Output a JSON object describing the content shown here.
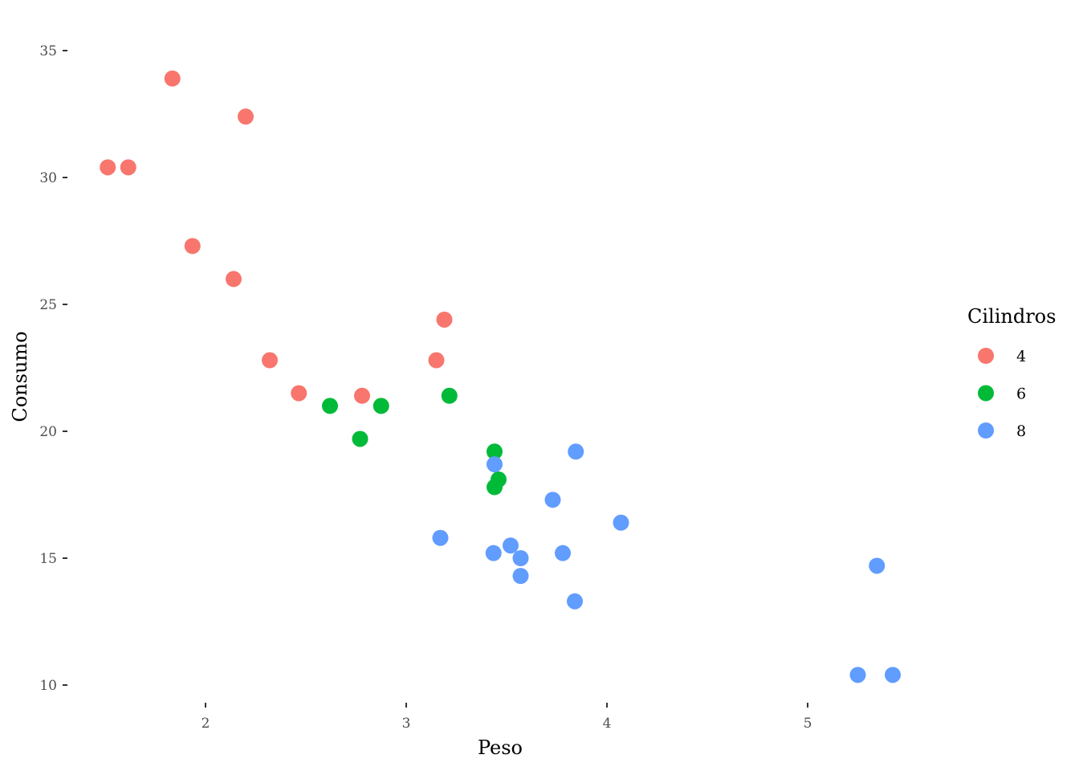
{
  "chart_data": {
    "type": "scatter",
    "xlabel": "Peso",
    "ylabel": "Consumo",
    "xlim": [
      1.5,
      5.5
    ],
    "ylim": [
      10,
      35
    ],
    "x_ticks": [
      2,
      3,
      4,
      5
    ],
    "y_ticks": [
      10,
      15,
      20,
      25,
      30,
      35
    ],
    "grid": false,
    "legend": {
      "title": "Cilindros",
      "position": "right",
      "entries": [
        {
          "label": "4",
          "color": "#F8766D"
        },
        {
          "label": "6",
          "color": "#00BA38"
        },
        {
          "label": "8",
          "color": "#619CFF"
        }
      ]
    },
    "series": [
      {
        "name": "4",
        "color": "#F8766D",
        "points": [
          {
            "x": 1.513,
            "y": 30.4
          },
          {
            "x": 1.615,
            "y": 30.4
          },
          {
            "x": 1.835,
            "y": 33.9
          },
          {
            "x": 1.935,
            "y": 27.3
          },
          {
            "x": 2.14,
            "y": 26.0
          },
          {
            "x": 2.2,
            "y": 32.4
          },
          {
            "x": 2.32,
            "y": 22.8
          },
          {
            "x": 2.465,
            "y": 21.5
          },
          {
            "x": 2.78,
            "y": 21.4
          },
          {
            "x": 3.15,
            "y": 22.8
          },
          {
            "x": 3.19,
            "y": 24.4
          }
        ]
      },
      {
        "name": "6",
        "color": "#00BA38",
        "points": [
          {
            "x": 2.62,
            "y": 21.0
          },
          {
            "x": 2.77,
            "y": 19.7
          },
          {
            "x": 2.875,
            "y": 21.0
          },
          {
            "x": 3.215,
            "y": 21.4
          },
          {
            "x": 3.44,
            "y": 19.2
          },
          {
            "x": 3.44,
            "y": 17.8
          },
          {
            "x": 3.46,
            "y": 18.1
          }
        ]
      },
      {
        "name": "8",
        "color": "#619CFF",
        "points": [
          {
            "x": 3.17,
            "y": 15.8
          },
          {
            "x": 3.435,
            "y": 15.2
          },
          {
            "x": 3.44,
            "y": 18.7
          },
          {
            "x": 3.52,
            "y": 15.5
          },
          {
            "x": 3.57,
            "y": 14.3
          },
          {
            "x": 3.57,
            "y": 15.0
          },
          {
            "x": 3.73,
            "y": 17.3
          },
          {
            "x": 3.78,
            "y": 15.2
          },
          {
            "x": 3.84,
            "y": 13.3
          },
          {
            "x": 3.845,
            "y": 19.2
          },
          {
            "x": 4.07,
            "y": 16.4
          },
          {
            "x": 5.25,
            "y": 10.4
          },
          {
            "x": 5.345,
            "y": 14.7
          },
          {
            "x": 5.424,
            "y": 10.4
          }
        ]
      }
    ]
  }
}
